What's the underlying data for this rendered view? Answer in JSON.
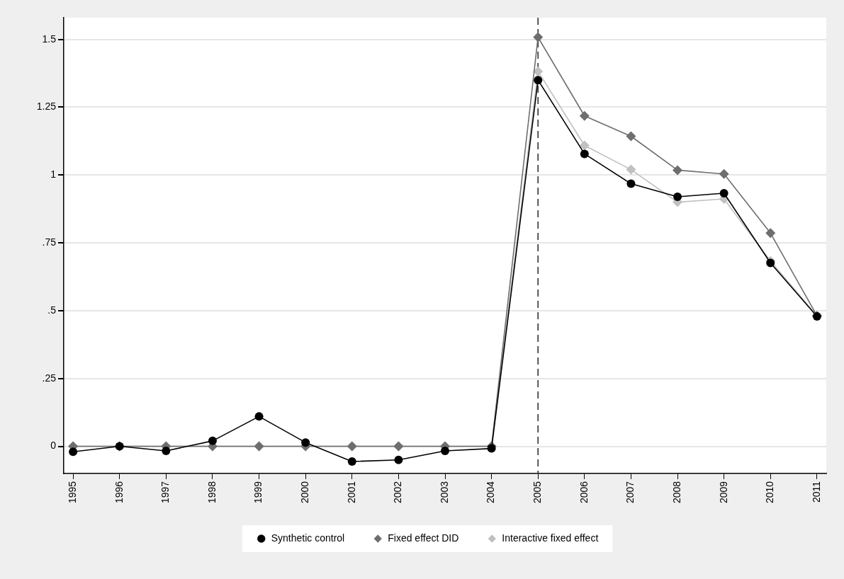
{
  "chart_data": {
    "type": "line",
    "x": [
      1995,
      1996,
      1997,
      1998,
      1999,
      2000,
      2001,
      2002,
      2003,
      2004,
      2005,
      2006,
      2007,
      2008,
      2009,
      2010,
      2011
    ],
    "xlim": [
      1994.8,
      2011.2
    ],
    "xticks": [
      1995,
      1996,
      1997,
      1998,
      1999,
      2000,
      2001,
      2002,
      2003,
      2004,
      2005,
      2006,
      2007,
      2008,
      2009,
      2010,
      2011
    ],
    "ylim": [
      -0.1,
      1.58
    ],
    "yticks": [
      0,
      {
        "value": 0.25,
        "label": ".25"
      },
      {
        "value": 0.5,
        "label": ".5"
      },
      {
        "value": 0.75,
        "label": ".75"
      },
      1,
      1.25,
      1.5
    ],
    "grid": "y",
    "legend": "bottom",
    "line_style": "solid",
    "ref_lines": [
      {
        "axis": "x",
        "value": 2005,
        "color": "#333333",
        "line_style": "dashed"
      }
    ],
    "series": [
      {
        "name": "Synthetic control",
        "color": "#000000",
        "marker": "circle",
        "values": [
          -0.02,
          0,
          -0.017,
          0.02,
          0.11,
          0.014,
          -0.056,
          -0.05,
          -0.017,
          -0.008,
          1.35,
          1.078,
          0.968,
          0.92,
          0.933,
          0.676,
          0.479
        ]
      },
      {
        "name": "Fixed effect DID",
        "color": "#6e6e6e",
        "marker": "diamond",
        "values": [
          0,
          0,
          0,
          0,
          0,
          0,
          0,
          0,
          0,
          0,
          1.508,
          1.218,
          1.143,
          1.018,
          1.004,
          0.786,
          0.481
        ]
      },
      {
        "name": "Interactive fixed effect",
        "color": "#c0c0c0",
        "marker": "diamond",
        "values": [
          0,
          0,
          0,
          0,
          0,
          0,
          0,
          0,
          0,
          0,
          1.382,
          1.109,
          1.02,
          0.9,
          0.912,
          0.683,
          0.481
        ]
      }
    ]
  }
}
